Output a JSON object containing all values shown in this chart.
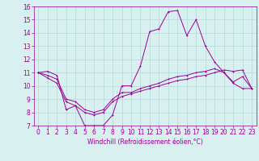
{
  "x": [
    0,
    1,
    2,
    3,
    4,
    5,
    6,
    7,
    8,
    9,
    10,
    11,
    12,
    13,
    14,
    15,
    16,
    17,
    18,
    19,
    20,
    21,
    22,
    23
  ],
  "line1": [
    11.0,
    11.1,
    10.8,
    8.2,
    8.5,
    7.0,
    7.0,
    7.0,
    7.8,
    10.0,
    10.0,
    11.5,
    14.1,
    14.3,
    15.6,
    15.7,
    13.8,
    15.0,
    13.0,
    11.8,
    11.0,
    10.3,
    10.7,
    9.8
  ],
  "line2": [
    11.0,
    10.8,
    10.5,
    9.0,
    8.8,
    8.2,
    8.0,
    8.2,
    9.0,
    9.5,
    9.5,
    9.8,
    10.0,
    10.2,
    10.5,
    10.7,
    10.8,
    11.0,
    11.1,
    11.3,
    11.0,
    10.2,
    9.8,
    9.8
  ],
  "line3": [
    11.0,
    10.6,
    10.2,
    8.8,
    8.5,
    8.0,
    7.8,
    8.0,
    8.8,
    9.2,
    9.4,
    9.6,
    9.8,
    10.0,
    10.2,
    10.4,
    10.5,
    10.7,
    10.8,
    11.0,
    11.2,
    11.1,
    11.2,
    9.8
  ],
  "color": "#990099",
  "bg_color": "#d8f0f0",
  "grid_color": "#b0d8d8",
  "xlabel": "Windchill (Refroidissement éolien,°C)",
  "ylim": [
    7,
    16
  ],
  "xlim": [
    -0.5,
    23.5
  ],
  "yticks": [
    7,
    8,
    9,
    10,
    11,
    12,
    13,
    14,
    15,
    16
  ],
  "xticks": [
    0,
    1,
    2,
    3,
    4,
    5,
    6,
    7,
    8,
    9,
    10,
    11,
    12,
    13,
    14,
    15,
    16,
    17,
    18,
    19,
    20,
    21,
    22,
    23
  ],
  "tick_fontsize": 5.5,
  "xlabel_fontsize": 5.5,
  "linewidth": 0.7,
  "markersize": 2.0
}
